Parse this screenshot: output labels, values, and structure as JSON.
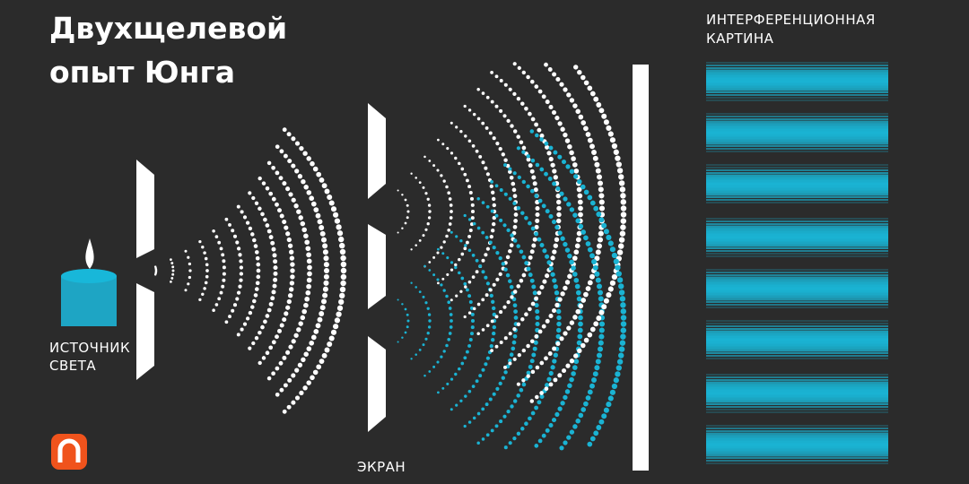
{
  "title": [
    "Двухщелевой",
    "опыт Юнга"
  ],
  "labels": {
    "source": [
      "ИСТОЧНИК",
      "СВЕТА"
    ],
    "screen": "ЭКРАН",
    "pattern": [
      "ИНТЕРФЕРЕНЦИОННАЯ",
      "КАРТИНА"
    ]
  }
}
